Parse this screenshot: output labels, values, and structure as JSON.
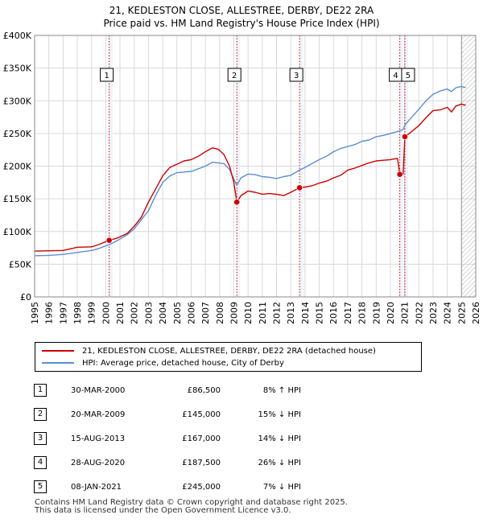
{
  "title_line1": "21, KEDLESTON CLOSE, ALLESTREE, DERBY, DE22 2RA",
  "title_line2": "Price paid vs. HM Land Registry's House Price Index (HPI)",
  "legend": {
    "property_label": "21, KEDLESTON CLOSE, ALLESTREE, DERBY, DE22 2RA (detached house)",
    "hpi_label": "HPI: Average price, detached house, City of Derby"
  },
  "colors": {
    "property": "#cc0000",
    "hpi": "#5b8fd0",
    "marker": "#cc0000"
  },
  "sales": [
    {
      "num": "1",
      "date": "30-MAR-2000",
      "price": "£86,500",
      "hpi": "8% ↑ HPI"
    },
    {
      "num": "2",
      "date": "20-MAR-2009",
      "price": "£145,000",
      "hpi": "15% ↓ HPI"
    },
    {
      "num": "3",
      "date": "15-AUG-2013",
      "price": "£167,000",
      "hpi": "14% ↓ HPI"
    },
    {
      "num": "4",
      "date": "28-AUG-2020",
      "price": "£187,500",
      "hpi": "26% ↓ HPI"
    },
    {
      "num": "5",
      "date": "08-JAN-2021",
      "price": "£245,000",
      "hpi": "7% ↓ HPI"
    }
  ],
  "footer": {
    "line1": "Contains HM Land Registry data © Crown copyright and database right 2025.",
    "line2": "This data is licensed under the Open Government Licence v3.0."
  },
  "chart_data": {
    "type": "line",
    "title": "21, KEDLESTON CLOSE, ALLESTREE, DERBY, DE22 2RA — Price paid vs. HM Land Registry's House Price Index (HPI)",
    "xlabel": "",
    "ylabel": "",
    "xlim": [
      1995,
      2026
    ],
    "ylim": [
      0,
      400000
    ],
    "grid": true,
    "y_ticks": [
      0,
      50000,
      100000,
      150000,
      200000,
      250000,
      300000,
      350000,
      400000
    ],
    "y_tick_labels": [
      "£0",
      "£50K",
      "£100K",
      "£150K",
      "£200K",
      "£250K",
      "£300K",
      "£350K",
      "£400K"
    ],
    "x_ticks": [
      1995,
      1996,
      1997,
      1998,
      1999,
      2000,
      2001,
      2002,
      2003,
      2004,
      2005,
      2006,
      2007,
      2008,
      2009,
      2010,
      2011,
      2012,
      2013,
      2014,
      2015,
      2016,
      2017,
      2018,
      2019,
      2020,
      2021,
      2022,
      2023,
      2024,
      2025,
      2026
    ],
    "forecast_start": 2025.0,
    "sale_years": [
      2000.24,
      2009.21,
      2013.62,
      2020.66,
      2021.02
    ],
    "sale_prices": [
      86500,
      145000,
      167000,
      187500,
      245000
    ],
    "series": [
      {
        "name": "21, KEDLESTON CLOSE, ALLESTREE, DERBY, DE22 2RA (detached house)",
        "x": [
          1995.0,
          1996.0,
          1997.0,
          1998.0,
          1999.0,
          1999.5,
          2000.24,
          2000.8,
          2001.5,
          2002.0,
          2002.5,
          2003.0,
          2003.5,
          2004.0,
          2004.5,
          2005.0,
          2005.5,
          2006.0,
          2006.5,
          2007.0,
          2007.5,
          2007.9,
          2008.3,
          2008.7,
          2009.0,
          2009.21,
          2009.5,
          2010.0,
          2010.5,
          2011.0,
          2011.5,
          2012.0,
          2012.5,
          2013.0,
          2013.62,
          2014.0,
          2014.5,
          2015.0,
          2015.5,
          2016.0,
          2016.5,
          2017.0,
          2017.5,
          2018.0,
          2018.5,
          2019.0,
          2019.5,
          2020.0,
          2020.5,
          2020.66,
          2020.9,
          2021.02,
          2021.5,
          2022.0,
          2022.5,
          2023.0,
          2023.5,
          2024.0,
          2024.3,
          2024.6,
          2025.0,
          2025.3
        ],
        "values": [
          70000,
          70500,
          71000,
          76000,
          76500,
          80000,
          86500,
          90000,
          97000,
          108000,
          122000,
          145000,
          165000,
          185000,
          198000,
          203000,
          208000,
          210000,
          215000,
          222000,
          228000,
          226000,
          218000,
          200000,
          175000,
          145000,
          155000,
          162000,
          160000,
          157000,
          158000,
          157000,
          155000,
          160000,
          167000,
          168000,
          170000,
          174000,
          177000,
          182000,
          186000,
          194000,
          197000,
          201000,
          205000,
          208000,
          209000,
          210000,
          212000,
          187500,
          188000,
          245000,
          253000,
          262000,
          274000,
          285000,
          286000,
          290000,
          283000,
          292000,
          295000,
          293000
        ]
      },
      {
        "name": "HPI: Average price, detached house, City of Derby",
        "x": [
          1995.0,
          1996.0,
          1997.0,
          1998.0,
          1999.0,
          1999.5,
          2000.24,
          2000.8,
          2001.5,
          2002.0,
          2002.5,
          2003.0,
          2003.5,
          2004.0,
          2004.5,
          2005.0,
          2005.5,
          2006.0,
          2006.5,
          2007.0,
          2007.5,
          2007.9,
          2008.3,
          2008.7,
          2009.0,
          2009.21,
          2009.5,
          2010.0,
          2010.5,
          2011.0,
          2011.5,
          2012.0,
          2012.5,
          2013.0,
          2013.62,
          2014.0,
          2014.5,
          2015.0,
          2015.5,
          2016.0,
          2016.5,
          2017.0,
          2017.5,
          2018.0,
          2018.5,
          2019.0,
          2019.5,
          2020.0,
          2020.5,
          2020.66,
          2020.9,
          2021.02,
          2021.5,
          2022.0,
          2022.5,
          2023.0,
          2023.5,
          2024.0,
          2024.3,
          2024.6,
          2025.0,
          2025.3
        ],
        "values": [
          63000,
          63500,
          65000,
          68000,
          71000,
          74000,
          80000,
          86000,
          95000,
          104000,
          118000,
          132000,
          155000,
          175000,
          185000,
          190000,
          191000,
          192000,
          196000,
          200000,
          206000,
          205000,
          204000,
          195000,
          180000,
          171000,
          182000,
          188000,
          187000,
          184000,
          183000,
          181000,
          184000,
          186000,
          194000,
          198000,
          204000,
          210000,
          215000,
          222000,
          227000,
          230000,
          233000,
          238000,
          240000,
          245000,
          247000,
          250000,
          253000,
          254000,
          256000,
          263000,
          275000,
          287000,
          300000,
          310000,
          315000,
          318000,
          314000,
          320000,
          322000,
          320000
        ]
      }
    ]
  }
}
